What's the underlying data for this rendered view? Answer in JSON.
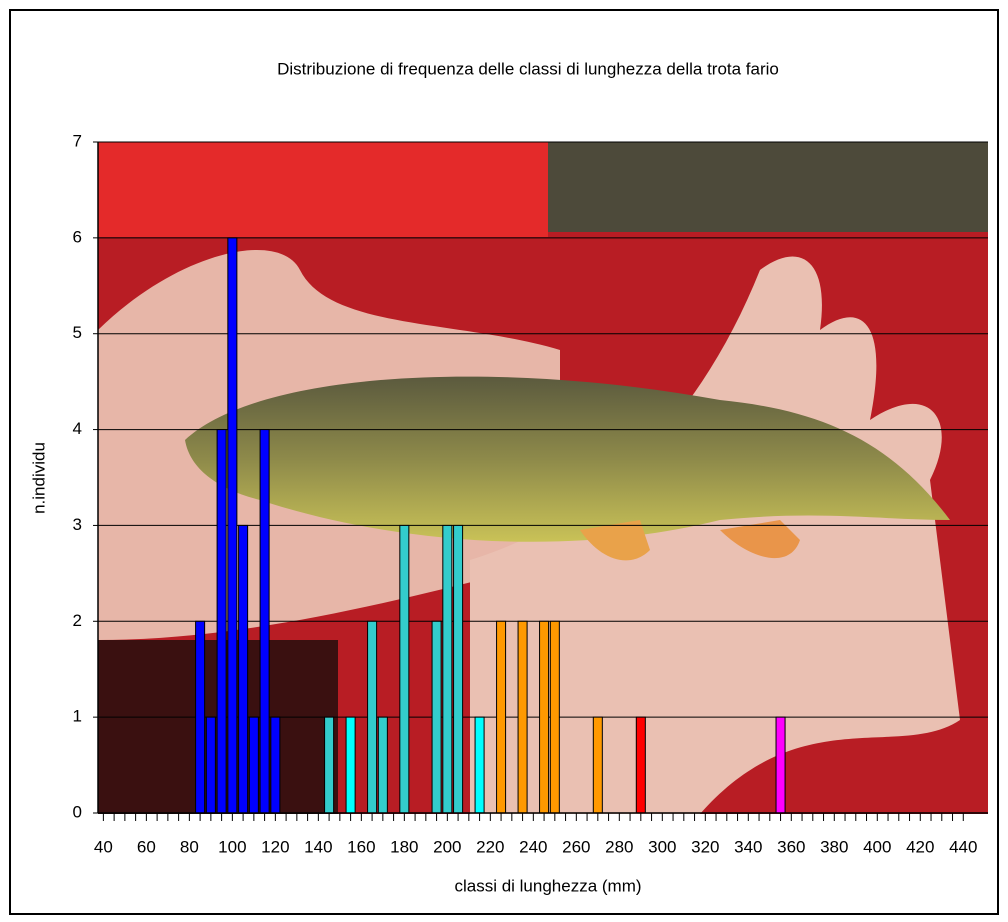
{
  "chart_data": {
    "type": "bar",
    "title": "Distribuzione di frequenza delle classi di lunghezza della trota fario",
    "xlabel": "classi di lunghezza (mm)",
    "ylabel": "n.individu",
    "x": [
      85,
      90,
      95,
      100,
      105,
      110,
      115,
      120,
      145,
      155,
      165,
      170,
      180,
      195,
      200,
      205,
      215,
      225,
      235,
      245,
      250,
      270,
      290,
      355
    ],
    "values": [
      2,
      1,
      4,
      6,
      3,
      1,
      4,
      1,
      1,
      1,
      2,
      1,
      3,
      2,
      3,
      3,
      1,
      2,
      2,
      2,
      2,
      1,
      1,
      1
    ],
    "colors": [
      "#0000ff",
      "#0000ff",
      "#0000ff",
      "#0000ff",
      "#0000ff",
      "#0000ff",
      "#0000ff",
      "#0000ff",
      "#33cccc",
      "#00ffff",
      "#33cccc",
      "#33cccc",
      "#33cccc",
      "#33cccc",
      "#33cccc",
      "#33cccc",
      "#00ffff",
      "#ff9900",
      "#ff9900",
      "#ff9900",
      "#ff9900",
      "#ff9900",
      "#ff0000",
      "#ff00ff"
    ],
    "xlim": [
      37.5,
      451.5
    ],
    "xticks": [
      40,
      60,
      80,
      100,
      120,
      140,
      160,
      180,
      200,
      220,
      240,
      260,
      280,
      300,
      320,
      340,
      360,
      380,
      400,
      420,
      440
    ],
    "ylim": [
      0,
      7
    ],
    "yticks": [
      0,
      1,
      2,
      3,
      4,
      5,
      6,
      7
    ],
    "grid": true
  }
}
